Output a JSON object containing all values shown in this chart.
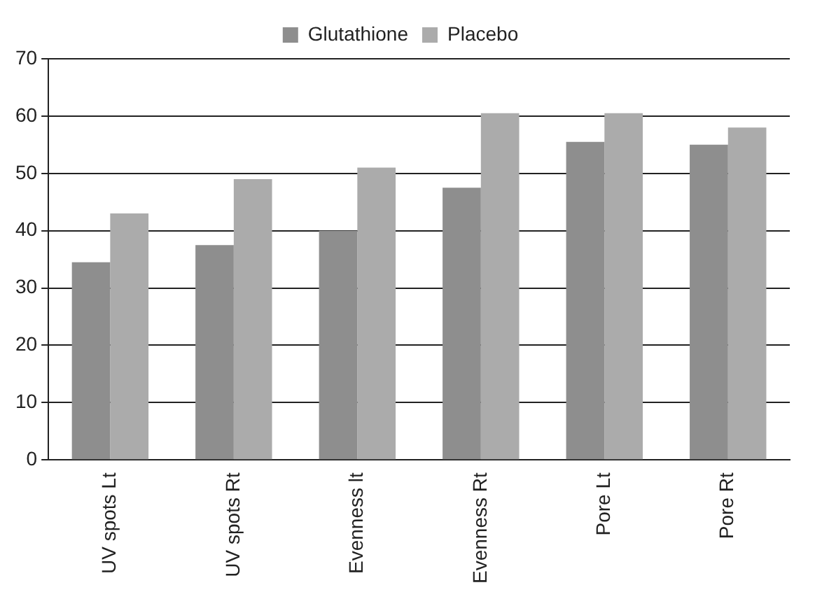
{
  "chart_data": {
    "type": "bar",
    "categories": [
      "UV spots Lt",
      "UV spots Rt",
      "Evenness lt",
      "Evenness Rt",
      "Pore Lt",
      "Pore Rt"
    ],
    "series": [
      {
        "name": "Glutathione",
        "color": "#8e8e8e",
        "values": [
          34.5,
          37.5,
          40,
          47.5,
          55.5,
          55
        ]
      },
      {
        "name": "Placebo",
        "color": "#ababab",
        "values": [
          43,
          49,
          51,
          60.5,
          60.5,
          58
        ]
      }
    ],
    "ylim": [
      0,
      70
    ],
    "yticks": [
      0,
      10,
      20,
      30,
      40,
      50,
      60,
      70
    ],
    "grid": "y",
    "legend": "top"
  }
}
